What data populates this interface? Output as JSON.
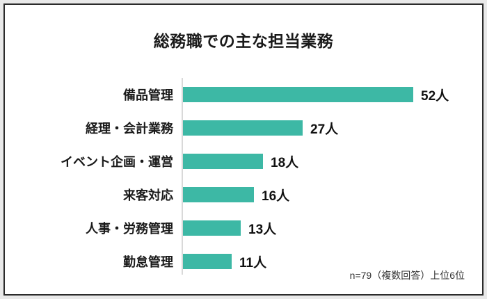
{
  "title": "総務職での主な担当業務",
  "footnote": "n=79（複数回答）上位6位",
  "colors": {
    "bar": "#3db8a5",
    "frame_border": "#2b2b2b",
    "outer_background": "#e9e9e9",
    "card_background": "#ffffff",
    "axis_line": "#d9d9d9",
    "text": "#1a1a1a"
  },
  "chart_data": {
    "type": "bar",
    "orientation": "horizontal",
    "title": "総務職での主な担当業務",
    "categories": [
      "備品管理",
      "経理・会計業務",
      "イベント企画・運営",
      "来客対応",
      "人事・労務管理",
      "勤怠管理"
    ],
    "values": [
      52,
      27,
      18,
      16,
      13,
      11
    ],
    "unit": "人",
    "value_labels": [
      "52人",
      "27人",
      "18人",
      "16人",
      "13人",
      "11人"
    ],
    "xlim": [
      0,
      55
    ],
    "grid": false,
    "legend": false,
    "note": "n=79（複数回答）上位6位",
    "bar_color": "#3db8a5"
  }
}
